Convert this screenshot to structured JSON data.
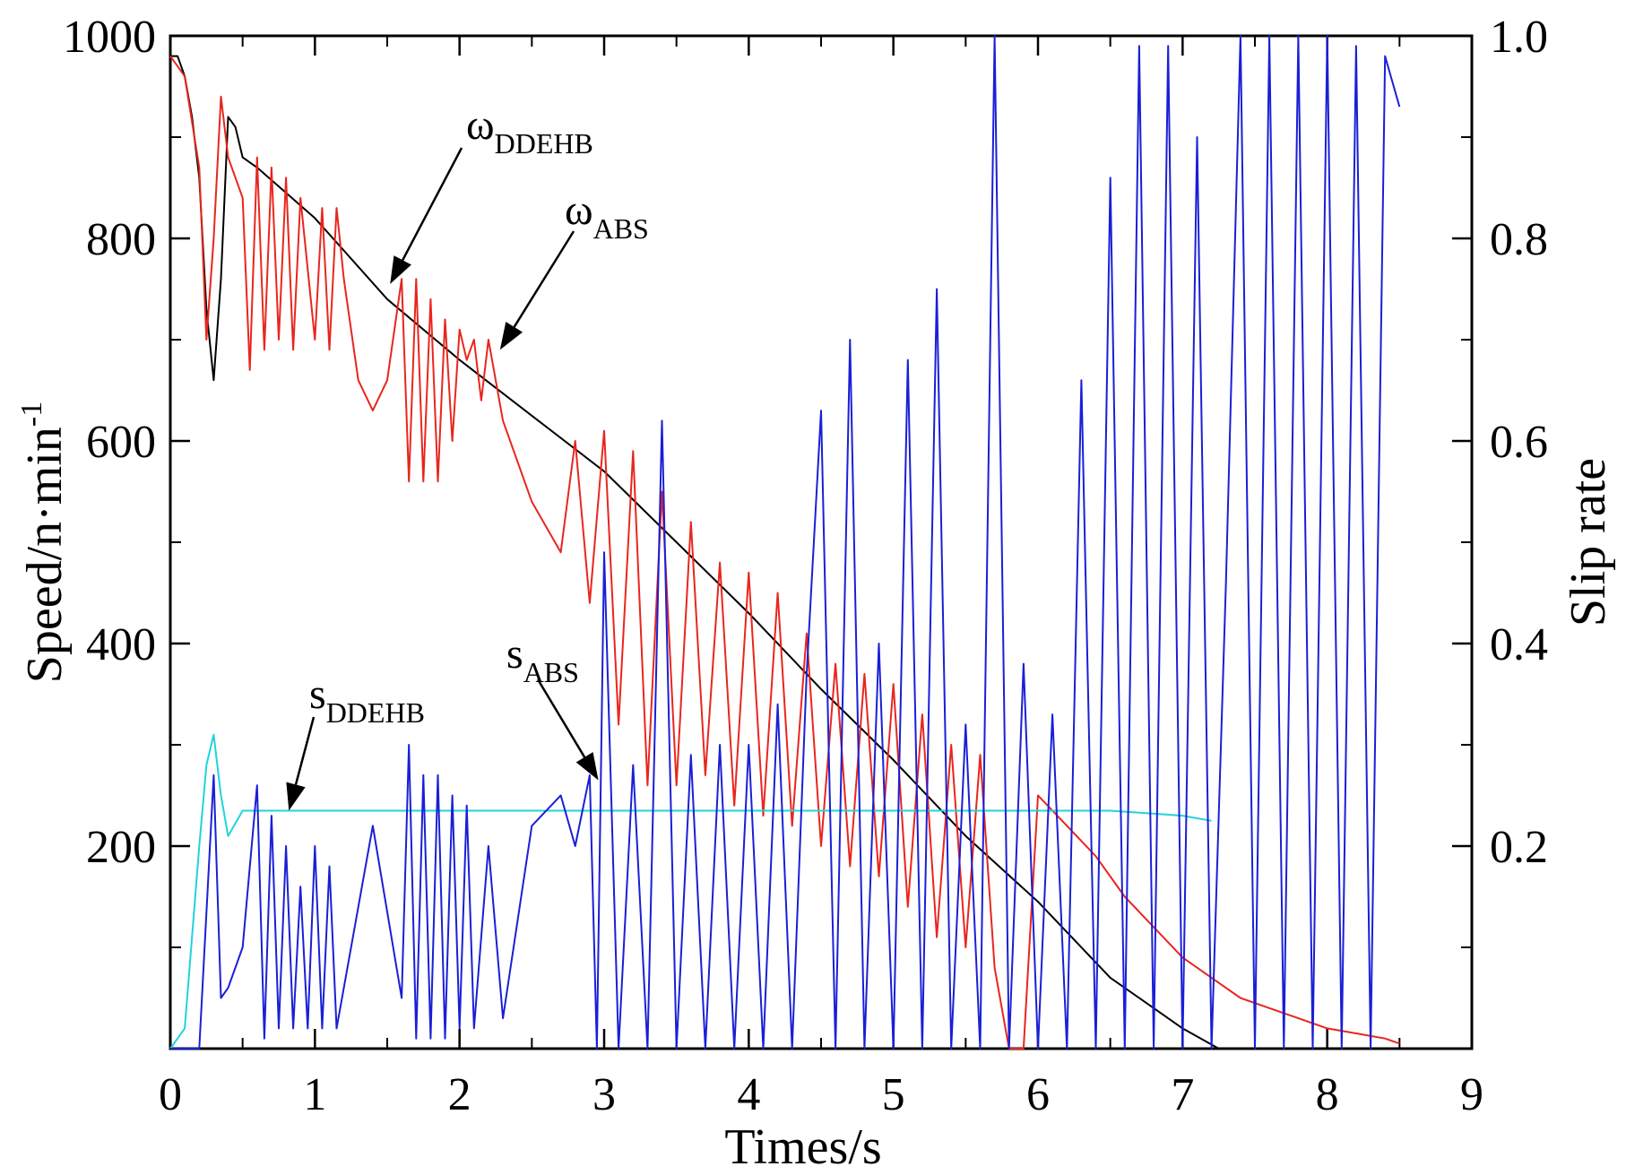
{
  "chart_data": {
    "type": "line",
    "title": "",
    "xlabel": "Times/s",
    "ylabel_left": "Speed/n·min",
    "ylabel_left_sup": "-1",
    "ylabel_right": "Slip rate",
    "xlim": [
      0,
      9
    ],
    "ylim_left": [
      0,
      1000
    ],
    "ylim_right": [
      0,
      1.0
    ],
    "x_ticks": [
      0,
      1,
      2,
      3,
      4,
      5,
      6,
      7,
      8,
      9
    ],
    "x_tick_labels": [
      "0",
      "1",
      "2",
      "3",
      "4",
      "5",
      "6",
      "7",
      "8",
      "9"
    ],
    "y_left_ticks": [
      200,
      400,
      600,
      800,
      1000
    ],
    "y_left_tick_labels": [
      "200",
      "400",
      "600",
      "800",
      "1000"
    ],
    "y_right_ticks": [
      0.2,
      0.4,
      0.6,
      0.8,
      1.0
    ],
    "y_right_tick_labels": [
      "0.2",
      "0.4",
      "0.6",
      "0.8",
      "1.0"
    ],
    "grid": false,
    "series": [
      {
        "name": "ω_DDEHB",
        "axis": "left",
        "color": "#000000",
        "x": [
          0.0,
          0.05,
          0.1,
          0.15,
          0.2,
          0.25,
          0.3,
          0.35,
          0.4,
          0.45,
          0.5,
          0.6,
          0.8,
          1.0,
          1.5,
          2.0,
          2.5,
          3.0,
          3.5,
          4.0,
          4.5,
          5.0,
          5.5,
          6.0,
          6.5,
          7.0,
          7.25
        ],
        "y": [
          980,
          980,
          960,
          920,
          860,
          730,
          660,
          760,
          920,
          910,
          880,
          870,
          845,
          820,
          740,
          680,
          625,
          570,
          500,
          430,
          355,
          285,
          210,
          145,
          70,
          20,
          0
        ]
      },
      {
        "name": "ω_ABS",
        "axis": "left",
        "color": "#e8261e",
        "x": [
          0.0,
          0.1,
          0.2,
          0.25,
          0.3,
          0.35,
          0.4,
          0.5,
          0.55,
          0.6,
          0.65,
          0.7,
          0.75,
          0.8,
          0.85,
          0.9,
          1.0,
          1.05,
          1.1,
          1.15,
          1.2,
          1.3,
          1.4,
          1.5,
          1.6,
          1.65,
          1.7,
          1.75,
          1.8,
          1.85,
          1.9,
          1.95,
          2.0,
          2.05,
          2.1,
          2.15,
          2.2,
          2.3,
          2.5,
          2.7,
          2.8,
          2.9,
          3.0,
          3.1,
          3.2,
          3.3,
          3.4,
          3.5,
          3.6,
          3.7,
          3.8,
          3.9,
          4.0,
          4.1,
          4.2,
          4.3,
          4.4,
          4.5,
          4.6,
          4.7,
          4.8,
          4.9,
          5.0,
          5.1,
          5.2,
          5.3,
          5.4,
          5.5,
          5.6,
          5.7,
          5.8,
          5.9,
          6.0,
          6.2,
          6.4,
          6.6,
          6.8,
          7.0,
          7.2,
          7.4,
          7.6,
          7.8,
          8.0,
          8.2,
          8.4,
          8.5
        ],
        "y": [
          980,
          960,
          870,
          700,
          800,
          940,
          880,
          840,
          670,
          880,
          690,
          870,
          700,
          860,
          690,
          840,
          700,
          830,
          690,
          830,
          760,
          660,
          630,
          660,
          760,
          560,
          760,
          560,
          740,
          560,
          720,
          600,
          710,
          680,
          700,
          640,
          700,
          620,
          540,
          490,
          600,
          440,
          610,
          320,
          590,
          260,
          550,
          260,
          520,
          270,
          480,
          240,
          470,
          230,
          450,
          220,
          410,
          200,
          380,
          180,
          370,
          170,
          360,
          140,
          330,
          110,
          300,
          100,
          290,
          80,
          0,
          0,
          250,
          220,
          190,
          150,
          120,
          90,
          70,
          50,
          40,
          30,
          20,
          15,
          10,
          5
        ]
      },
      {
        "name": "s_DDEHB",
        "axis": "right",
        "color": "#22d3dc",
        "x": [
          0.0,
          0.1,
          0.2,
          0.25,
          0.3,
          0.35,
          0.4,
          0.5,
          1.0,
          2.0,
          3.0,
          4.0,
          5.0,
          6.0,
          6.5,
          7.0,
          7.2
        ],
        "y": [
          0.0,
          0.02,
          0.2,
          0.28,
          0.31,
          0.25,
          0.21,
          0.235,
          0.235,
          0.235,
          0.235,
          0.235,
          0.235,
          0.235,
          0.235,
          0.23,
          0.225
        ]
      },
      {
        "name": "s_ABS",
        "axis": "right",
        "color": "#1a1fd6",
        "x": [
          0.0,
          0.1,
          0.2,
          0.3,
          0.35,
          0.4,
          0.5,
          0.6,
          0.65,
          0.7,
          0.75,
          0.8,
          0.85,
          0.9,
          0.95,
          1.0,
          1.05,
          1.1,
          1.15,
          1.2,
          1.4,
          1.6,
          1.65,
          1.7,
          1.75,
          1.8,
          1.85,
          1.9,
          1.95,
          2.0,
          2.05,
          2.1,
          2.2,
          2.3,
          2.5,
          2.7,
          2.8,
          2.9,
          2.95,
          3.0,
          3.1,
          3.2,
          3.3,
          3.4,
          3.5,
          3.6,
          3.7,
          3.8,
          3.9,
          4.0,
          4.1,
          4.2,
          4.3,
          4.4,
          4.5,
          4.6,
          4.7,
          4.8,
          4.9,
          5.0,
          5.1,
          5.2,
          5.3,
          5.4,
          5.5,
          5.6,
          5.7,
          5.8,
          5.9,
          6.0,
          6.1,
          6.2,
          6.3,
          6.4,
          6.5,
          6.6,
          6.7,
          6.8,
          6.9,
          7.0,
          7.1,
          7.2,
          7.3,
          7.4,
          7.5,
          7.6,
          7.7,
          7.8,
          7.9,
          8.0,
          8.1,
          8.2,
          8.3,
          8.4,
          8.5
        ],
        "y": [
          0.0,
          0.0,
          0.0,
          0.27,
          0.05,
          0.06,
          0.1,
          0.26,
          0.01,
          0.23,
          0.02,
          0.2,
          0.02,
          0.16,
          0.02,
          0.2,
          0.02,
          0.18,
          0.02,
          0.06,
          0.22,
          0.05,
          0.3,
          0.01,
          0.27,
          0.01,
          0.27,
          0.01,
          0.25,
          0.02,
          0.24,
          0.02,
          0.2,
          0.03,
          0.22,
          0.25,
          0.2,
          0.27,
          0.0,
          0.49,
          0.0,
          0.28,
          0.0,
          0.62,
          0.0,
          0.29,
          0.0,
          0.3,
          0.0,
          0.3,
          0.0,
          0.34,
          0.0,
          0.37,
          0.63,
          0.0,
          0.7,
          0.0,
          0.4,
          0.0,
          0.68,
          0.0,
          0.75,
          0.0,
          0.32,
          0.0,
          1.0,
          0.0,
          0.38,
          0.0,
          0.33,
          0.0,
          0.66,
          0.0,
          0.86,
          0.0,
          0.99,
          0.0,
          0.99,
          0.0,
          0.9,
          0.0,
          0.46,
          1.0,
          0.0,
          1.0,
          0.0,
          1.0,
          0.0,
          1.0,
          0.0,
          0.99,
          0.0,
          0.98,
          0.93
        ]
      }
    ],
    "annotations": [
      {
        "id": "omega_ddehb",
        "main": "ω",
        "sub": "DDEHB",
        "target_x": 1.52,
        "target_y": 755,
        "axis": "left"
      },
      {
        "id": "omega_abs",
        "main": "ω",
        "sub": "ABS",
        "target_x": 2.28,
        "target_y": 690,
        "axis": "left"
      },
      {
        "id": "s_ddehb",
        "main": "s",
        "sub": "DDEHB",
        "target_x": 0.82,
        "target_y": 235,
        "axis": "left"
      },
      {
        "id": "s_abs",
        "main": "s",
        "sub": "ABS",
        "target_x": 2.96,
        "target_y": 265,
        "axis": "left"
      }
    ]
  }
}
